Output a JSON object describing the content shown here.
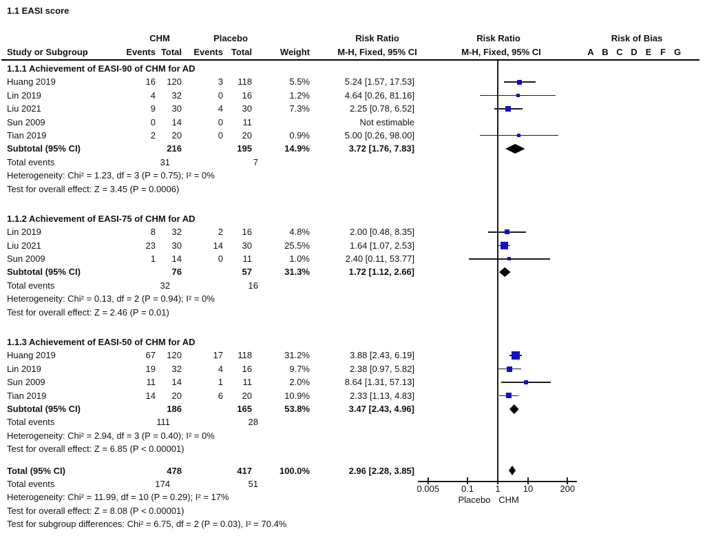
{
  "title": "1.1 EASI score",
  "colors": {
    "square_blue": "#1010CC",
    "line_black": "#1a1a1a",
    "diamond_black": "#000000"
  },
  "table_header": {
    "group_chm": "CHM",
    "group_placebo": "Placebo",
    "group_risk_ratio_text": "Risk Ratio",
    "group_risk_ratio_plot": "Risk Ratio",
    "group_risk_of_bias": "Risk of Bias",
    "study_or_subgroup": "Study or Subgroup",
    "events": "Events",
    "total": "Total",
    "weight": "Weight",
    "mh_fixed_text": "M-H, Fixed, 95% CI",
    "mh_fixed_plot": "M-H, Fixed, 95% CI",
    "rob_letters": [
      "A",
      "B",
      "C",
      "D",
      "E",
      "F",
      "G"
    ]
  },
  "axis": {
    "scale": "log",
    "ticks": [
      {
        "value": 0.005,
        "label": "0.005"
      },
      {
        "value": 0.1,
        "label": "0.1"
      },
      {
        "value": 1,
        "label": "1"
      },
      {
        "value": 10,
        "label": "10"
      },
      {
        "value": 200,
        "label": "200"
      }
    ],
    "favours_left": "Placebo",
    "favours_right": "CHM"
  },
  "labels": {
    "subtotal": "Subtotal (95% CI)",
    "total_events": "Total events",
    "grand_total": "Total (95% CI)"
  },
  "chart_data": {
    "type": "forest",
    "effect_measure": "Risk Ratio (M-H, Fixed, 95% CI)",
    "x_axis": {
      "ticks": [
        0.005,
        0.1,
        1,
        10,
        200
      ],
      "left_label": "Placebo",
      "right_label": "CHM"
    },
    "subgroups": [
      {
        "label": "1.1.1 Achievement of EASI-90 of CHM for AD",
        "studies": [
          {
            "study": "Huang 2019",
            "e1": "16",
            "t1": "120",
            "e2": "3",
            "t2": "118",
            "weight": "5.5%",
            "ci_text": "5.24 [1.57, 17.53]",
            "rr": 5.24,
            "lo": 1.57,
            "hi": 17.53,
            "w": 5.5
          },
          {
            "study": "Lin 2019",
            "e1": "4",
            "t1": "32",
            "e2": "0",
            "t2": "16",
            "weight": "1.2%",
            "ci_text": "4.64 [0.26, 81.16]",
            "rr": 4.64,
            "lo": 0.26,
            "hi": 81.16,
            "w": 1.2
          },
          {
            "study": "Liu 2021",
            "e1": "9",
            "t1": "30",
            "e2": "4",
            "t2": "30",
            "weight": "7.3%",
            "ci_text": "2.25 [0.78, 6.52]",
            "rr": 2.25,
            "lo": 0.78,
            "hi": 6.52,
            "w": 7.3
          },
          {
            "study": "Sun 2009",
            "e1": "0",
            "t1": "14",
            "e2": "0",
            "t2": "11",
            "weight": "",
            "ci_text": "Not estimable",
            "rr": null,
            "lo": null,
            "hi": null,
            "w": null
          },
          {
            "study": "Tian 2019",
            "e1": "2",
            "t1": "20",
            "e2": "0",
            "t2": "20",
            "weight": "0.9%",
            "ci_text": "5.00 [0.26, 98.00]",
            "rr": 5.0,
            "lo": 0.26,
            "hi": 98.0,
            "w": 0.9
          }
        ],
        "subtotal": {
          "t1": "216",
          "t2": "195",
          "weight": "14.9%",
          "ci_text": "3.72 [1.76, 7.83]",
          "rr": 3.72,
          "lo": 1.76,
          "hi": 7.83
        },
        "total_events": {
          "e1": "31",
          "e2": "7"
        },
        "heterogeneity": "Heterogeneity: Chi² = 1.23, df = 3 (P = 0.75); I² = 0%",
        "overall": "Test for overall effect: Z = 3.45 (P = 0.0006)"
      },
      {
        "label": "1.1.2 Achievement of EASI-75 of CHM for AD",
        "studies": [
          {
            "study": "Lin 2019",
            "e1": "8",
            "t1": "32",
            "e2": "2",
            "t2": "16",
            "weight": "4.8%",
            "ci_text": "2.00 [0.48, 8.35]",
            "rr": 2.0,
            "lo": 0.48,
            "hi": 8.35,
            "w": 4.8
          },
          {
            "study": "Liu 2021",
            "e1": "23",
            "t1": "30",
            "e2": "14",
            "t2": "30",
            "weight": "25.5%",
            "ci_text": "1.64 [1.07, 2.53]",
            "rr": 1.64,
            "lo": 1.07,
            "hi": 2.53,
            "w": 25.5
          },
          {
            "study": "Sun 2009",
            "e1": "1",
            "t1": "14",
            "e2": "0",
            "t2": "11",
            "weight": "1.0%",
            "ci_text": "2.40 [0.11, 53.77]",
            "rr": 2.4,
            "lo": 0.11,
            "hi": 53.77,
            "w": 1.0
          }
        ],
        "subtotal": {
          "t1": "76",
          "t2": "57",
          "weight": "31.3%",
          "ci_text": "1.72 [1.12, 2.66]",
          "rr": 1.72,
          "lo": 1.12,
          "hi": 2.66
        },
        "total_events": {
          "e1": "32",
          "e2": "16"
        },
        "heterogeneity": "Heterogeneity: Chi² = 0.13, df = 2 (P = 0.94); I² = 0%",
        "overall": "Test for overall effect: Z = 2.46 (P = 0.01)"
      },
      {
        "label": "1.1.3 Achievement of EASI-50 of CHM for AD",
        "studies": [
          {
            "study": "Huang 2019",
            "e1": "67",
            "t1": "120",
            "e2": "17",
            "t2": "118",
            "weight": "31.2%",
            "ci_text": "3.88 [2.43, 6.19]",
            "rr": 3.88,
            "lo": 2.43,
            "hi": 6.19,
            "w": 31.2
          },
          {
            "study": "Lin 2019",
            "e1": "19",
            "t1": "32",
            "e2": "4",
            "t2": "16",
            "weight": "9.7%",
            "ci_text": "2.38 [0.97, 5.82]",
            "rr": 2.38,
            "lo": 0.97,
            "hi": 5.82,
            "w": 9.7
          },
          {
            "study": "Sun 2009",
            "e1": "11",
            "t1": "14",
            "e2": "1",
            "t2": "11",
            "weight": "2.0%",
            "ci_text": "8.64 [1.31, 57.13]",
            "rr": 8.64,
            "lo": 1.31,
            "hi": 57.13,
            "w": 2.0
          },
          {
            "study": "Tian 2019",
            "e1": "14",
            "t1": "20",
            "e2": "6",
            "t2": "20",
            "weight": "10.9%",
            "ci_text": "2.33 [1.13, 4.83]",
            "rr": 2.33,
            "lo": 1.13,
            "hi": 4.83,
            "w": 10.9
          }
        ],
        "subtotal": {
          "t1": "186",
          "t2": "165",
          "weight": "53.8%",
          "ci_text": "3.47 [2.43, 4.96]",
          "rr": 3.47,
          "lo": 2.43,
          "hi": 4.96
        },
        "total_events": {
          "e1": "111",
          "e2": "28"
        },
        "heterogeneity": "Heterogeneity: Chi² = 2.94, df = 3 (P = 0.40); I² = 0%",
        "overall": "Test for overall effect: Z = 6.85 (P < 0.00001)"
      }
    ],
    "total": {
      "t1": "478",
      "t2": "417",
      "weight": "100.0%",
      "ci_text": "2.96 [2.28, 3.85]",
      "rr": 2.96,
      "lo": 2.28,
      "hi": 3.85,
      "total_events": {
        "e1": "174",
        "e2": "51"
      },
      "heterogeneity": "Heterogeneity: Chi² = 11.99, df = 10 (P = 0.29); I² = 17%",
      "overall": "Test for overall effect: Z = 8.08 (P < 0.00001)",
      "subgroup_diff": "Test for subgroup differences: Chi² = 6.75, df = 2 (P = 0.03), I² = 70.4%"
    }
  }
}
